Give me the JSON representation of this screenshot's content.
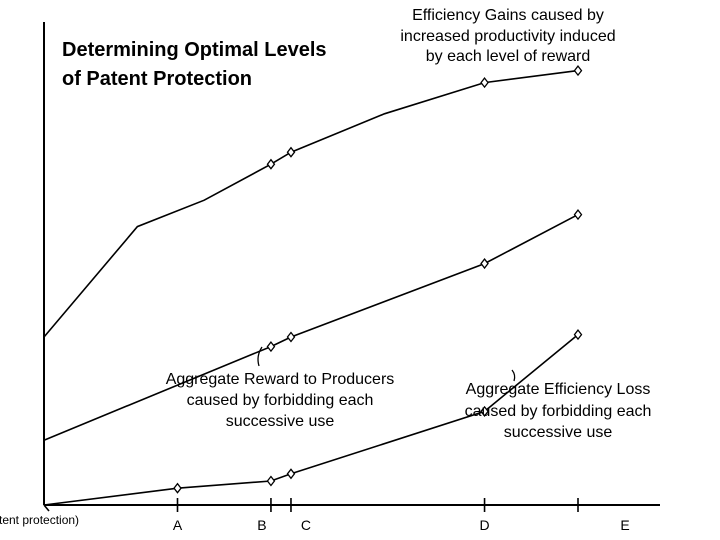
{
  "chart_data": {
    "type": "line",
    "title_lines": [
      "Determining Optimal Levels",
      "of Patent Protection"
    ],
    "categories": [
      "(no patent protection)",
      "A",
      "B",
      "C",
      "D",
      "E"
    ],
    "x": [
      0,
      1,
      1.7,
      1.85,
      3.3,
      4.0
    ],
    "xlim": [
      0,
      4.0
    ],
    "ylim": [
      0,
      10
    ],
    "grid": false,
    "legend": "none",
    "series": [
      {
        "annotation_lines": [
          "Efficiency Gains caused by",
          "increased productivity induced",
          "by each level of reward"
        ],
        "x": [
          0,
          0.7,
          1.2,
          1.7,
          1.85,
          2.55,
          3.3,
          4.0
        ],
        "values": [
          3.5,
          5.8,
          6.35,
          7.1,
          7.35,
          8.15,
          8.8,
          9.05
        ],
        "markers": [
          false,
          false,
          false,
          true,
          true,
          false,
          true,
          true
        ]
      },
      {
        "annotation_lines": [
          "Aggregate Reward to Producers",
          "caused by forbidding each",
          "successive use"
        ],
        "x": [
          0,
          1.7,
          1.85,
          3.3,
          4.0
        ],
        "values": [
          1.35,
          3.3,
          3.5,
          5.03,
          6.05
        ],
        "markers": [
          false,
          true,
          true,
          true,
          true
        ]
      },
      {
        "annotation_lines": [
          "Aggregate Efficiency Loss",
          "caused by forbidding each",
          "successive use"
        ],
        "x": [
          0,
          1.0,
          1.7,
          1.85,
          3.3,
          4.0
        ],
        "values": [
          0,
          0.35,
          0.5,
          0.65,
          1.95,
          3.55
        ],
        "markers": [
          false,
          true,
          true,
          true,
          true,
          true
        ]
      }
    ]
  }
}
